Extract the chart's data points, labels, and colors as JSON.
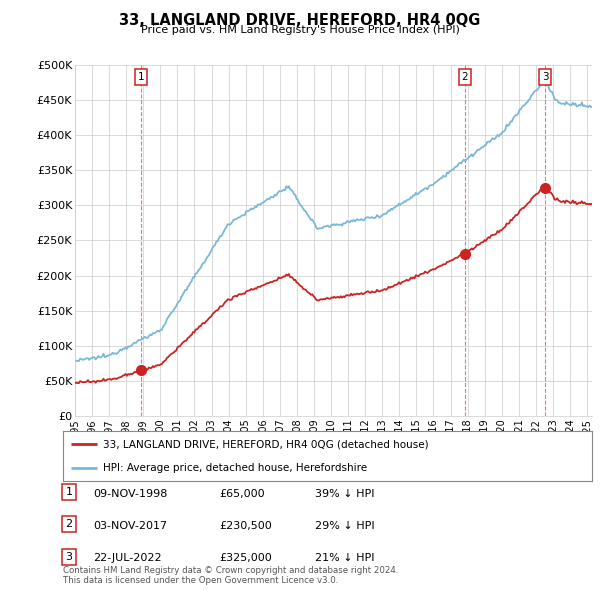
{
  "title": "33, LANGLAND DRIVE, HEREFORD, HR4 0QG",
  "subtitle": "Price paid vs. HM Land Registry's House Price Index (HPI)",
  "ylim": [
    0,
    500000
  ],
  "yticks": [
    0,
    50000,
    100000,
    150000,
    200000,
    250000,
    300000,
    350000,
    400000,
    450000,
    500000
  ],
  "ytick_labels": [
    "£0",
    "£50K",
    "£100K",
    "£150K",
    "£200K",
    "£250K",
    "£300K",
    "£350K",
    "£400K",
    "£450K",
    "£500K"
  ],
  "hpi_color": "#7ab8d9",
  "price_color": "#cc2222",
  "legend_label_property": "33, LANGLAND DRIVE, HEREFORD, HR4 0QG (detached house)",
  "legend_label_hpi": "HPI: Average price, detached house, Herefordshire",
  "transactions": [
    {
      "label": "1",
      "date": "09-NOV-1998",
      "price": 65000,
      "hpi_pct": "39% ↓ HPI",
      "x": 1998.86
    },
    {
      "label": "2",
      "date": "03-NOV-2017",
      "price": 230500,
      "hpi_pct": "29% ↓ HPI",
      "x": 2017.84
    },
    {
      "label": "3",
      "date": "22-JUL-2022",
      "price": 325000,
      "hpi_pct": "21% ↓ HPI",
      "x": 2022.55
    }
  ],
  "footer": "Contains HM Land Registry data © Crown copyright and database right 2024.\nThis data is licensed under the Open Government Licence v3.0.",
  "background_color": "#ffffff",
  "grid_color": "#cccccc",
  "xlim": [
    1995,
    2025.3
  ],
  "xticks": [
    1995,
    1996,
    1997,
    1998,
    1999,
    2000,
    2001,
    2002,
    2003,
    2004,
    2005,
    2006,
    2007,
    2008,
    2009,
    2010,
    2011,
    2012,
    2013,
    2014,
    2015,
    2016,
    2017,
    2018,
    2019,
    2020,
    2021,
    2022,
    2023,
    2024,
    2025
  ]
}
